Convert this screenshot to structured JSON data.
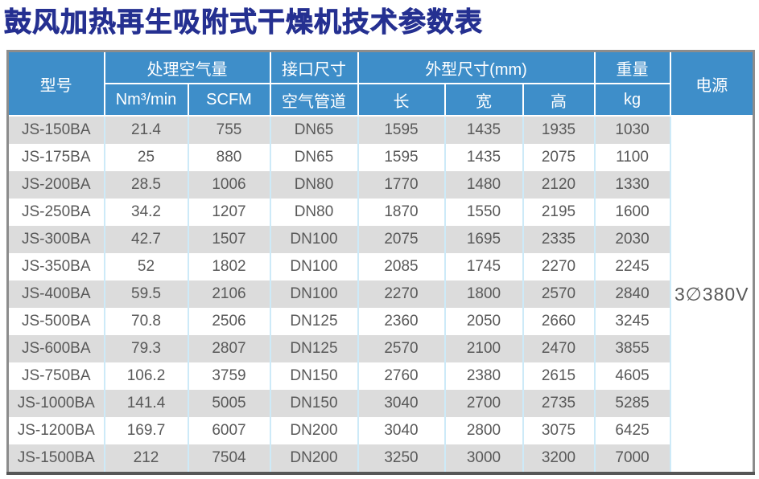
{
  "page": {
    "title": "鼓风加热再生吸附式干燥机技术参数表"
  },
  "colors": {
    "title_blue": "#253091",
    "header_blue": "#3E8EC9",
    "stripe_gray": "#DCDCDC",
    "divider_light_blue": "#CDEAF8",
    "data_text_gray": "#595959",
    "outer_border_gray": "#8C8C8C"
  },
  "chart_data": {
    "type": "table",
    "title": "鼓风加热再生吸附式干燥机技术参数表",
    "headers": {
      "model": "型号",
      "air_volume_group": "处理空气量",
      "air_volume_nm3": "Nm³/min",
      "air_volume_scfm": "SCFM",
      "interface_group": "接口尺寸",
      "interface_pipe": "空气管道",
      "dimensions_group": "外型尺寸(mm)",
      "dim_length": "长",
      "dim_width": "宽",
      "dim_height": "高",
      "weight_group": "重量",
      "weight_unit": "kg",
      "power": "电源"
    },
    "power_value": "3∅380V",
    "columns": [
      "型号",
      "Nm³/min",
      "SCFM",
      "空气管道",
      "长",
      "宽",
      "高",
      "kg",
      "电源"
    ],
    "rows": [
      [
        "JS-150BA",
        "21.4",
        "755",
        "DN65",
        "1595",
        "1435",
        "1935",
        "1030"
      ],
      [
        "JS-175BA",
        "25",
        "880",
        "DN65",
        "1595",
        "1435",
        "2075",
        "1100"
      ],
      [
        "JS-200BA",
        "28.5",
        "1006",
        "DN80",
        "1770",
        "1480",
        "2120",
        "1330"
      ],
      [
        "JS-250BA",
        "34.2",
        "1207",
        "DN80",
        "1870",
        "1550",
        "2195",
        "1600"
      ],
      [
        "JS-300BA",
        "42.7",
        "1507",
        "DN100",
        "2075",
        "1695",
        "2335",
        "2030"
      ],
      [
        "JS-350BA",
        "52",
        "1802",
        "DN100",
        "2085",
        "1745",
        "2270",
        "2245"
      ],
      [
        "JS-400BA",
        "59.5",
        "2106",
        "DN100",
        "2270",
        "1800",
        "2570",
        "2840"
      ],
      [
        "JS-500BA",
        "70.8",
        "2506",
        "DN125",
        "2360",
        "2050",
        "2660",
        "3245"
      ],
      [
        "JS-600BA",
        "79.3",
        "2807",
        "DN125",
        "2570",
        "2100",
        "2470",
        "3855"
      ],
      [
        "JS-750BA",
        "106.2",
        "3759",
        "DN150",
        "2760",
        "2380",
        "2615",
        "4605"
      ],
      [
        "JS-1000BA",
        "141.4",
        "5005",
        "DN150",
        "3040",
        "2700",
        "2735",
        "5285"
      ],
      [
        "JS-1200BA",
        "169.7",
        "6007",
        "DN200",
        "3040",
        "2800",
        "3075",
        "6425"
      ],
      [
        "JS-1500BA",
        "212",
        "7504",
        "DN200",
        "3250",
        "3000",
        "3200",
        "7000"
      ]
    ]
  }
}
